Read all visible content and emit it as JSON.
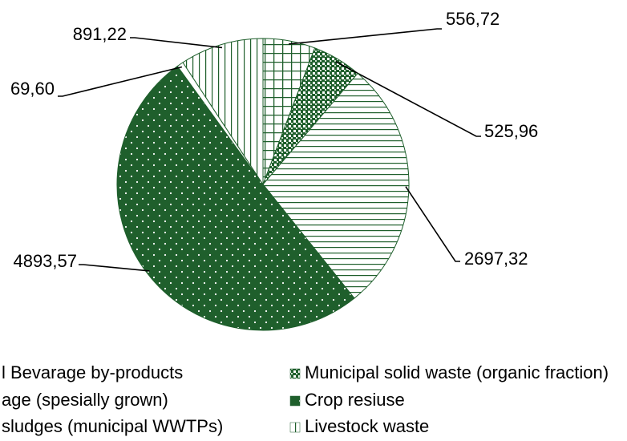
{
  "chart_data": {
    "type": "pie",
    "categories": [
      "l Bevarage by-products",
      "Municipal solid waste (organic fraction)",
      "age (spesially grown)",
      "Crop resiuse",
      "sludges (municipal WWTPs)",
      "Livestock waste"
    ],
    "values": [
      556.72,
      525.96,
      2697.32,
      4893.57,
      69.6,
      891.22
    ],
    "value_labels": [
      "556,72",
      "525,96",
      "2697,32",
      "4893,57",
      "69,60",
      "891,22"
    ],
    "colors": [
      "#1f5f2c",
      "#1f5f2c",
      "#1f5f2c",
      "#1f5f2c",
      "#1f5f2c",
      "#1f5f2c"
    ],
    "patterns": [
      "grid",
      "checker",
      "horizontal",
      "dots",
      "none",
      "vertical"
    ]
  }
}
